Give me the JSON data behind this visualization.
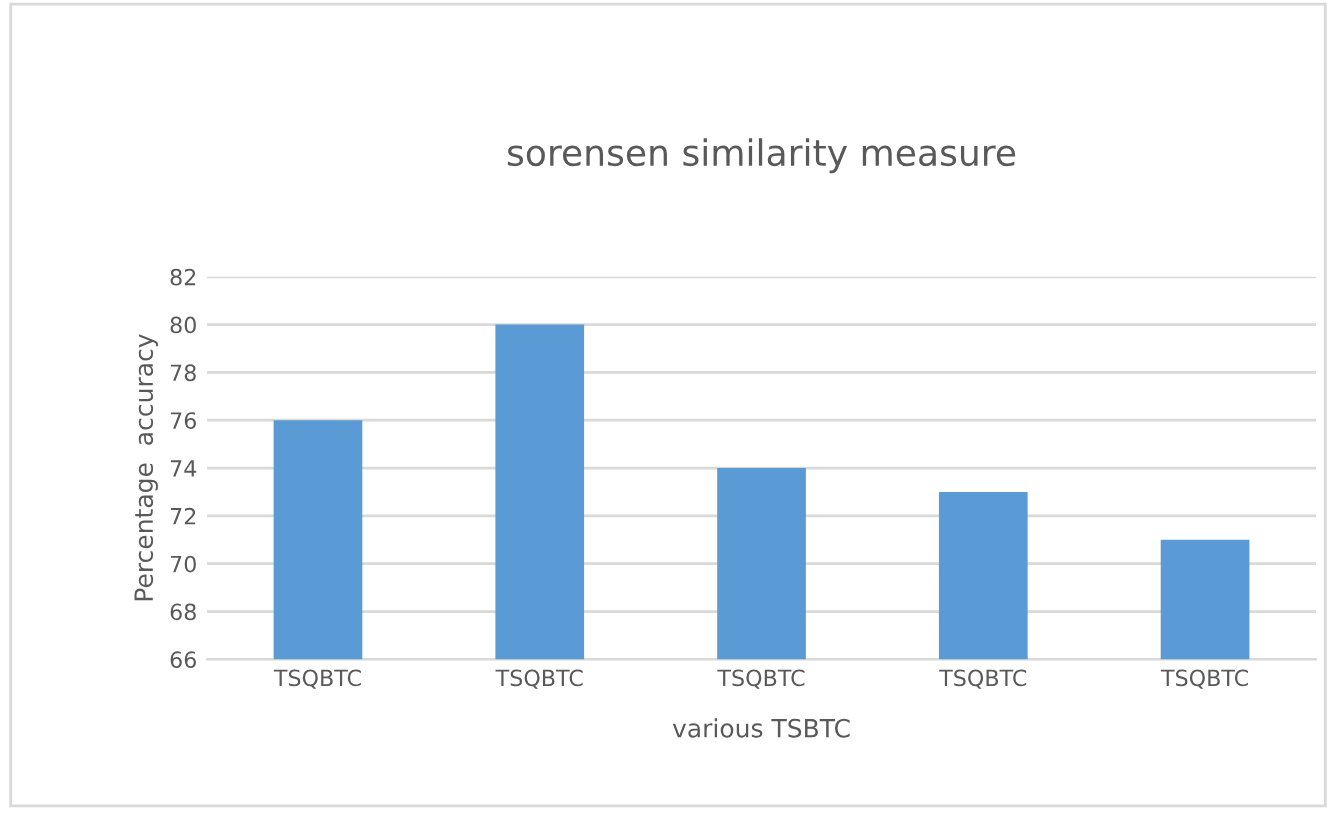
{
  "chart_data": {
    "type": "bar",
    "title": "sorensen similarity measure",
    "xlabel": "various TSBTC",
    "ylabel": "Percentage  accuracy",
    "categories": [
      "TSQBTC",
      "TSQBTC",
      "TSQBTC",
      "TSQBTC",
      "TSQBTC"
    ],
    "values": [
      76,
      80,
      74,
      73,
      71
    ],
    "color": "#5b9bd5",
    "ylim": [
      66,
      82
    ],
    "yticks": [
      66,
      68,
      70,
      72,
      74,
      76,
      78,
      80,
      82
    ],
    "grid": "y"
  }
}
